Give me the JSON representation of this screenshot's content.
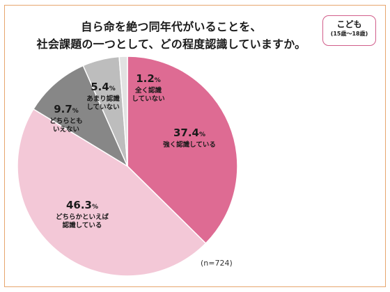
{
  "title_lines": [
    "自ら命を絶つ同年代がいることを、",
    "社会課題の一つとして、どの程度認識していますか。"
  ],
  "badge": {
    "main": "こども",
    "sub": "(15歳～18歳)"
  },
  "note": "(n=724)",
  "chart_data": {
    "type": "pie",
    "start": "12 o'clock, clockwise",
    "slices": [
      {
        "label": [
          "強く認識している"
        ],
        "value": 37.4,
        "color": "#de6b93"
      },
      {
        "label": [
          "どちらかといえば",
          "認識している"
        ],
        "value": 46.3,
        "color": "#f3c8d7"
      },
      {
        "label": [
          "どちらとも",
          "いえない"
        ],
        "value": 9.7,
        "color": "#878787"
      },
      {
        "label": [
          "あまり認識",
          "していない"
        ],
        "value": 5.4,
        "color": "#bdbdbd"
      },
      {
        "label": [
          "全く認識",
          "していない"
        ],
        "value": 1.2,
        "color": "#e2e2e2"
      }
    ],
    "unit": "%"
  }
}
